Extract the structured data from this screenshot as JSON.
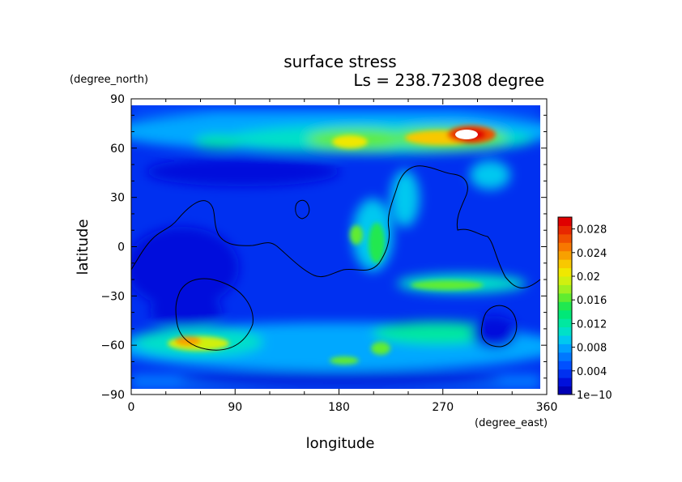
{
  "chart_data": {
    "type": "heatmap",
    "title": "surface stress",
    "subtitle": "Ls = 238.72308 degree",
    "xlabel": "longitude",
    "ylabel": "latitude",
    "x_units": "(degree_east)",
    "y_units": "(degree_north)",
    "xlim": [
      0,
      360
    ],
    "ylim": [
      -90,
      90
    ],
    "x_ticks": [
      "0",
      "90",
      "180",
      "270",
      "360"
    ],
    "y_ticks": [
      "90",
      "60",
      "30",
      "0",
      "−30",
      "−60",
      "−90"
    ],
    "colorbar": {
      "range": [
        0,
        0.03
      ],
      "tick_labels": [
        "1e−10",
        "0.004",
        "0.008",
        "0.012",
        "0.016",
        "0.02",
        "0.024",
        "0.028"
      ],
      "colors": [
        "#0000b4",
        "#0010dc",
        "#0030f0",
        "#0050ff",
        "#0078ff",
        "#00a0ff",
        "#00c8f0",
        "#00e0c8",
        "#00e8a0",
        "#00e878",
        "#20e850",
        "#60ec30",
        "#a0f020",
        "#d0f010",
        "#f0e800",
        "#f8c800",
        "#f8a000",
        "#f87800",
        "#f05000",
        "#e82800",
        "#e00000"
      ]
    },
    "grid": false,
    "approx_features": [
      {
        "lon": 290,
        "lat": 67,
        "value": 0.03,
        "note": "maximum (white)"
      },
      {
        "lon": 180,
        "lat": 62,
        "value": 0.021
      },
      {
        "lon": 255,
        "lat": 62,
        "value": 0.019
      },
      {
        "lon": 50,
        "lat": -58,
        "value": 0.022
      },
      {
        "lon": 270,
        "lat": -25,
        "value": 0.017
      },
      {
        "lon": 190,
        "lat": -68,
        "value": 0.015
      },
      {
        "lon": 210,
        "lat": 5,
        "value": 0.012
      },
      {
        "lon": 10,
        "lat": -20,
        "value": 0.003
      }
    ]
  }
}
